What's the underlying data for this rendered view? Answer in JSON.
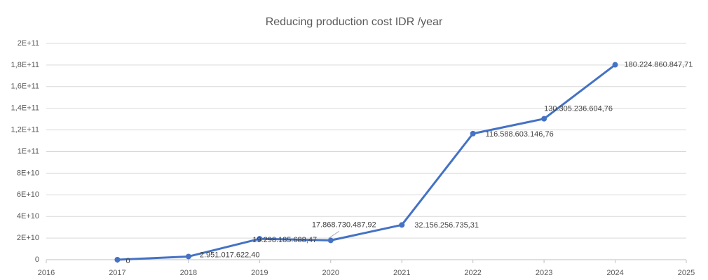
{
  "chart_data": {
    "type": "line",
    "title": "Reducing production cost IDR /year",
    "x": [
      2017,
      2018,
      2019,
      2020,
      2021,
      2022,
      2023,
      2024
    ],
    "series": [
      {
        "name": "Reducing production cost IDR /year",
        "color": "#4472c4",
        "values": [
          0,
          2951017622.4,
          19298185688.47,
          17868730487.92,
          32156256735.31,
          116588603146.76,
          130305236604.76,
          180224860847.71
        ],
        "value_labels": [
          "0",
          "2.951.017.622,40",
          "19.298.185.688,47",
          "17.868.730.487,92",
          "32.156.256.735,31",
          "116.588.603.146,76",
          "130.305.236.604,76",
          "180.224.860.847,71"
        ]
      }
    ],
    "xlim": [
      2016,
      2025
    ],
    "xticks": [
      2016,
      2017,
      2018,
      2019,
      2020,
      2021,
      2022,
      2023,
      2024,
      2025
    ],
    "ylim": [
      0,
      200000000000
    ],
    "yticks": [
      0,
      {
        "value": 20000000000,
        "label": "2E+10"
      },
      {
        "value": 40000000000,
        "label": "4E+10"
      },
      {
        "value": 60000000000,
        "label": "6E+10"
      },
      {
        "value": 80000000000,
        "label": "8E+10"
      },
      {
        "value": 100000000000,
        "label": "1E+11"
      },
      {
        "value": 120000000000,
        "label": "1,2E+11"
      },
      {
        "value": 140000000000,
        "label": "1,4E+11"
      },
      {
        "value": 160000000000,
        "label": "1,6E+11"
      },
      {
        "value": 180000000000,
        "label": "1,8E+11"
      },
      {
        "value": 200000000000,
        "label": "2E+11"
      }
    ],
    "grid": true
  }
}
